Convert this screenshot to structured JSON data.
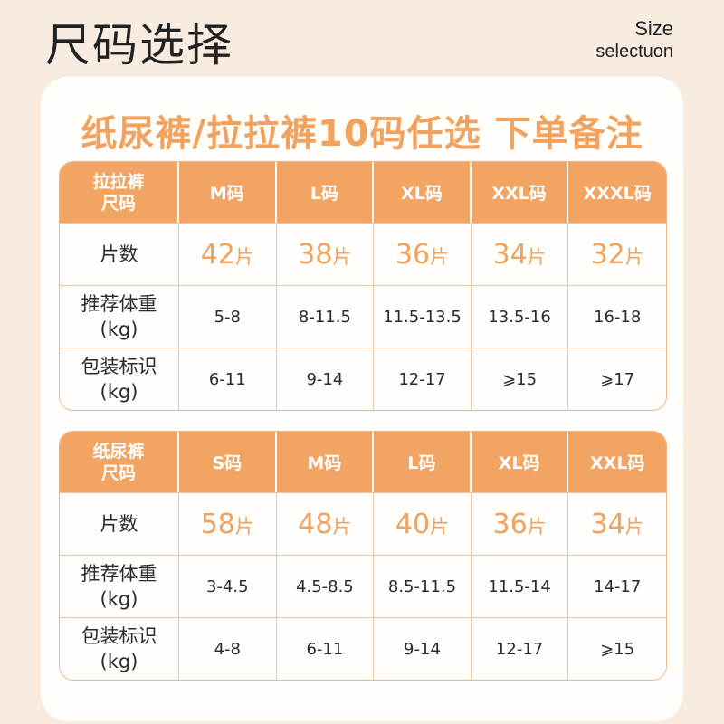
{
  "header": {
    "title": "尺码选择",
    "size_label_line1": "Size",
    "size_label_line2": "selectuon"
  },
  "card": {
    "headline": "纸尿裤/拉拉裤10码任选  下单备注"
  },
  "tables": [
    {
      "corner_line1": "拉拉裤",
      "corner_line2": "尺码",
      "sizes": [
        "M码",
        "L码",
        "XL码",
        "XXL码",
        "XXXL码"
      ],
      "count_label": "片数",
      "counts": [
        {
          "num": "42",
          "unit": "片"
        },
        {
          "num": "38",
          "unit": "片"
        },
        {
          "num": "36",
          "unit": "片"
        },
        {
          "num": "34",
          "unit": "片"
        },
        {
          "num": "32",
          "unit": "片"
        }
      ],
      "weight_label_line1": "推荐体重",
      "weight_label_line2": "(kg)",
      "weights": [
        "5-8",
        "8-11.5",
        "11.5-13.5",
        "13.5-16",
        "16-18"
      ],
      "pack_label_line1": "包装标识",
      "pack_label_line2": "(kg)",
      "packs": [
        "6-11",
        "9-14",
        "12-17",
        "⩾15",
        "⩾17"
      ]
    },
    {
      "corner_line1": "纸尿裤",
      "corner_line2": "尺码",
      "sizes": [
        "S码",
        "M码",
        "L码",
        "XL码",
        "XXL码"
      ],
      "count_label": "片数",
      "counts": [
        {
          "num": "58",
          "unit": "片"
        },
        {
          "num": "48",
          "unit": "片"
        },
        {
          "num": "40",
          "unit": "片"
        },
        {
          "num": "36",
          "unit": "片"
        },
        {
          "num": "34",
          "unit": "片"
        }
      ],
      "weight_label_line1": "推荐体重",
      "weight_label_line2": "(kg)",
      "weights": [
        "3-4.5",
        "4.5-8.5",
        "8.5-11.5",
        "11.5-14",
        "14-17"
      ],
      "pack_label_line1": "包装标识",
      "pack_label_line2": "(kg)",
      "packs": [
        "4-8",
        "6-11",
        "9-14",
        "12-17",
        "⩾15"
      ]
    }
  ],
  "colors": {
    "accent": "#f2a463",
    "accent_text": "#f0a25e",
    "background": "#f8ece1",
    "card": "#fffefb",
    "grid": "#ecc6a6"
  }
}
